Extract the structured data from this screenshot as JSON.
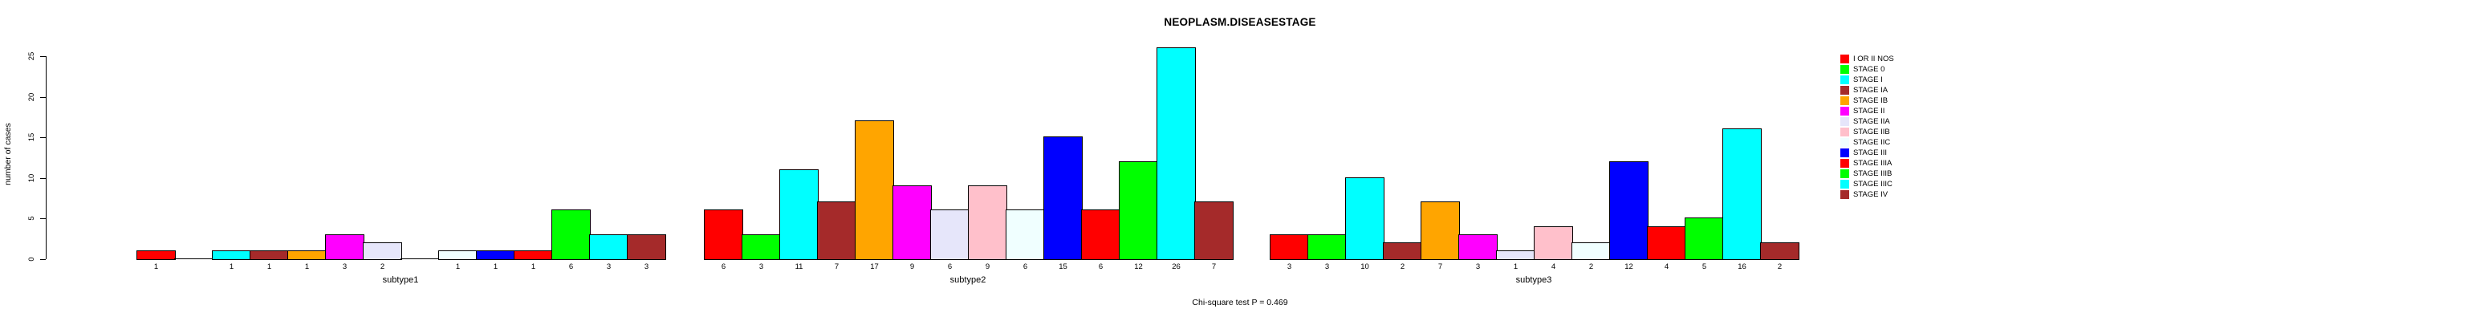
{
  "chart_data": {
    "type": "bar",
    "title": "NEOPLASM.DISEASESTAGE",
    "ylabel": "number of cases",
    "footnote": "Chi-square test P = 0.469",
    "ylim": [
      0,
      25
    ],
    "yticks": [
      0,
      5,
      10,
      15,
      20,
      25
    ],
    "grid": false,
    "legend_position": "right",
    "bar_labels_shown_for_zero": false,
    "stages": [
      {
        "label": "I OR II NOS",
        "color": "#FF0000"
      },
      {
        "label": "STAGE 0",
        "color": "#00FF00"
      },
      {
        "label": "STAGE I",
        "color": "#00FFFF"
      },
      {
        "label": "STAGE IA",
        "color": "#A52A2A"
      },
      {
        "label": "STAGE IB",
        "color": "#FFA500"
      },
      {
        "label": "STAGE II",
        "color": "#FF00FF"
      },
      {
        "label": "STAGE IIA",
        "color": "#E6E6FA"
      },
      {
        "label": "STAGE IIB",
        "color": "#FFC0CB"
      },
      {
        "label": "STAGE IIC",
        "color": "#F0FFFF"
      },
      {
        "label": "STAGE III",
        "color": "#0000FF"
      },
      {
        "label": "STAGE IIIA",
        "color": "#FF0000"
      },
      {
        "label": "STAGE IIIB",
        "color": "#00FF00"
      },
      {
        "label": "STAGE IIIC",
        "color": "#00FFFF"
      },
      {
        "label": "STAGE IV",
        "color": "#A52A2A"
      }
    ],
    "groups": [
      {
        "label": "subtype1",
        "values": [
          1,
          0,
          1,
          1,
          1,
          3,
          2,
          0,
          1,
          1,
          1,
          6,
          3,
          3
        ]
      },
      {
        "label": "subtype2",
        "values": [
          6,
          3,
          11,
          7,
          17,
          9,
          6,
          9,
          6,
          15,
          6,
          12,
          26,
          7
        ]
      },
      {
        "label": "subtype3",
        "values": [
          3,
          3,
          10,
          2,
          7,
          3,
          1,
          4,
          2,
          12,
          4,
          5,
          16,
          2
        ]
      }
    ]
  }
}
